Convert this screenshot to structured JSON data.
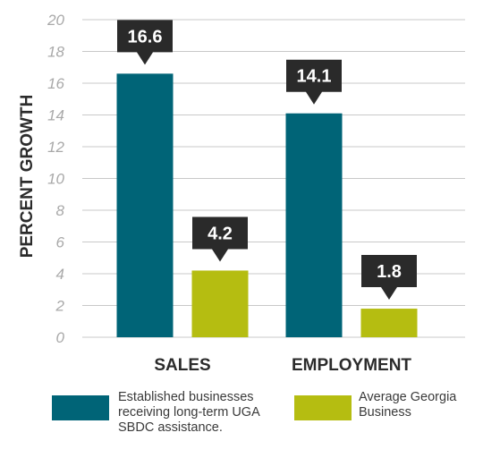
{
  "chart_data": {
    "type": "bar",
    "categories": [
      "SALES",
      "EMPLOYMENT"
    ],
    "series": [
      {
        "name": "Established businesses receiving long-term UGA SBDC assistance.",
        "values": [
          16.6,
          14.1
        ],
        "color": "#006477"
      },
      {
        "name": "Average Georgia Business",
        "values": [
          4.2,
          1.8
        ],
        "color": "#b5bd11"
      }
    ],
    "data_labels": [
      "16.6",
      "4.2",
      "14.1",
      "1.8"
    ],
    "ylabel": "PERCENT GROWTH",
    "ylim": [
      0,
      20
    ],
    "yticks": [
      0,
      2,
      4,
      6,
      8,
      10,
      12,
      14,
      16,
      18,
      20
    ],
    "grid": true,
    "legend_position": "bottom"
  },
  "legend": {
    "item1": "Established businesses\nreceiving long-term UGA\nSBDC assistance.",
    "item2": "Average Georgia\nBusiness"
  },
  "colors": {
    "callout": "#2a2a2a",
    "grid": "#c8c8c8"
  }
}
